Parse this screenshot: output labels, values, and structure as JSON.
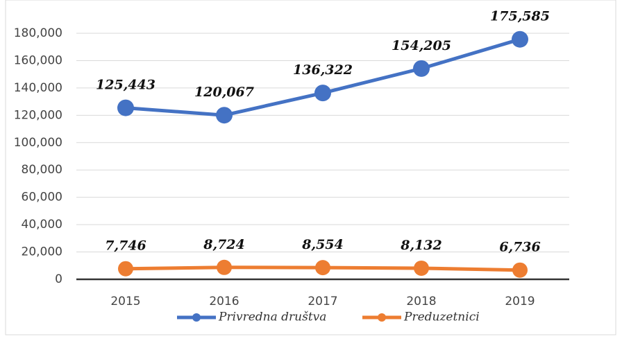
{
  "chart_data": {
    "type": "line",
    "categories": [
      "2015",
      "2016",
      "2017",
      "2018",
      "2019"
    ],
    "series": [
      {
        "name": "Privredna društva",
        "color": "#4472c4",
        "values": [
          125443,
          120067,
          136322,
          154205,
          175585
        ],
        "value_labels": [
          "125,443",
          "120,067",
          "136,322",
          "154,205",
          "175,585"
        ]
      },
      {
        "name": "Preduzetnici",
        "color": "#ed7d31",
        "values": [
          7746,
          8724,
          8554,
          8132,
          6736
        ],
        "value_labels": [
          "7,746",
          "8,724",
          "8,554",
          "8,132",
          "6,736"
        ]
      }
    ],
    "ylim": [
      0,
      180000
    ],
    "yticks": [
      0,
      {
        "value": 20000,
        "label": "20,000"
      },
      {
        "value": 40000,
        "label": "40,000"
      },
      {
        "value": 60000,
        "label": "60,000"
      },
      {
        "value": 80000,
        "label": "80,000"
      },
      {
        "value": 100000,
        "label": "100,000"
      },
      {
        "value": 120000,
        "label": "120,000"
      },
      {
        "value": 140000,
        "label": "140,000"
      },
      {
        "value": 160000,
        "label": "160,000"
      },
      {
        "value": 180000,
        "label": "180,000"
      }
    ],
    "grid": true,
    "legend": "bottom"
  }
}
